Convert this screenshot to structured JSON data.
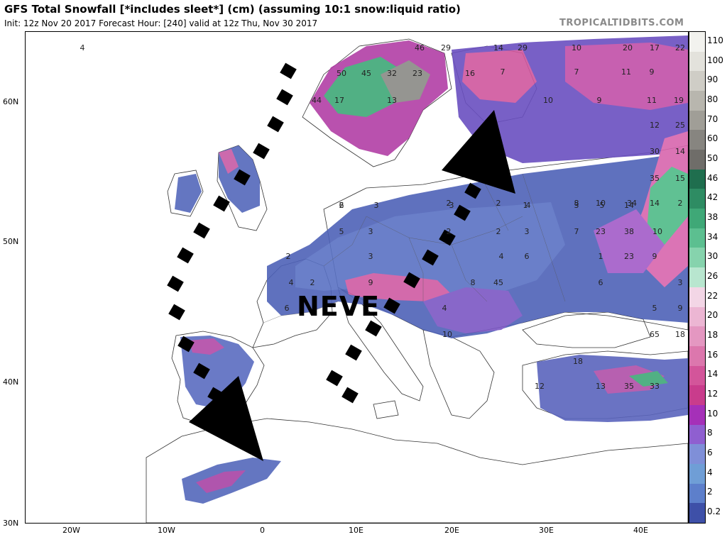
{
  "header": {
    "title": "GFS Total Snowfall [*includes sleet*] (cm) (assuming 10:1 snow:liquid ratio)",
    "subtitle": "Init: 12z Nov 20 2017   Forecast Hour: [240]   valid at 12z Thu, Nov 30 2017",
    "brand": "TROPICALTIDBITS.COM"
  },
  "axes": {
    "lat_labels": [
      "60N",
      "50N",
      "40N",
      "30N"
    ],
    "lon_labels": [
      "20W",
      "10W",
      "0",
      "10E",
      "20E",
      "30E",
      "40E"
    ]
  },
  "annotation": {
    "label": "NEVE"
  },
  "colorbar": {
    "labels": [
      "110",
      "100",
      "90",
      "80",
      "70",
      "60",
      "50",
      "46",
      "42",
      "38",
      "34",
      "30",
      "26",
      "22",
      "20",
      "18",
      "16",
      "14",
      "12",
      "10",
      "8",
      "6",
      "4",
      "2",
      "0.2"
    ],
    "colors": [
      "#f2f2ee",
      "#e3e2dc",
      "#cfcdc6",
      "#b8b6ae",
      "#a09e97",
      "#878580",
      "#6f6d69",
      "#1f6e4e",
      "#2e8c63",
      "#3fa877",
      "#5cbf90",
      "#86d3ad",
      "#b8e6cf",
      "#f3d6e6",
      "#ecb6d3",
      "#e497c1",
      "#dc77ad",
      "#d3559a",
      "#c93c8c",
      "#a530b8",
      "#8f5fd0",
      "#7f8fd8",
      "#6f9ed6",
      "#5d7fcb",
      "#3e50a8"
    ]
  },
  "map_values": [
    {
      "t": "4"
    },
    {
      "t": "46"
    },
    {
      "t": "29"
    },
    {
      "t": "14"
    },
    {
      "t": "29"
    },
    {
      "t": "10"
    },
    {
      "t": "20"
    },
    {
      "t": "17"
    },
    {
      "t": "22"
    },
    {
      "t": "50"
    },
    {
      "t": "45"
    },
    {
      "t": "32"
    },
    {
      "t": "23"
    },
    {
      "t": "16"
    },
    {
      "t": "7"
    },
    {
      "t": "7"
    },
    {
      "t": "11"
    },
    {
      "t": "9"
    },
    {
      "t": "44"
    },
    {
      "t": "17"
    },
    {
      "t": "13"
    },
    {
      "t": "10"
    },
    {
      "t": "9"
    },
    {
      "t": "11"
    },
    {
      "t": "19"
    },
    {
      "t": "12"
    },
    {
      "t": "25"
    },
    {
      "t": "30"
    },
    {
      "t": "14"
    },
    {
      "t": "35"
    },
    {
      "t": "15"
    },
    {
      "t": "2"
    },
    {
      "t": "3"
    },
    {
      "t": "3"
    },
    {
      "t": "4"
    },
    {
      "t": "3"
    },
    {
      "t": "5"
    },
    {
      "t": "14"
    },
    {
      "t": "6"
    },
    {
      "t": "2"
    },
    {
      "t": "2"
    },
    {
      "t": "1"
    },
    {
      "t": "8"
    },
    {
      "t": "10"
    },
    {
      "t": "34"
    },
    {
      "t": "14"
    },
    {
      "t": "2"
    },
    {
      "t": "5"
    },
    {
      "t": "3"
    },
    {
      "t": "2"
    },
    {
      "t": "2"
    },
    {
      "t": "3"
    },
    {
      "t": "7"
    },
    {
      "t": "23"
    },
    {
      "t": "38"
    },
    {
      "t": "10"
    },
    {
      "t": "2"
    },
    {
      "t": "3"
    },
    {
      "t": "4"
    },
    {
      "t": "6"
    },
    {
      "t": "1"
    },
    {
      "t": "23"
    },
    {
      "t": "9"
    },
    {
      "t": "4"
    },
    {
      "t": "2"
    },
    {
      "t": "9"
    },
    {
      "t": "8"
    },
    {
      "t": "45"
    },
    {
      "t": "6"
    },
    {
      "t": "3"
    },
    {
      "t": "6"
    },
    {
      "t": "4"
    },
    {
      "t": "5"
    },
    {
      "t": "9"
    },
    {
      "t": "10"
    },
    {
      "t": "65"
    },
    {
      "t": "18"
    },
    {
      "t": "18"
    },
    {
      "t": "12"
    },
    {
      "t": "13"
    },
    {
      "t": "35"
    },
    {
      "t": "33"
    }
  ]
}
